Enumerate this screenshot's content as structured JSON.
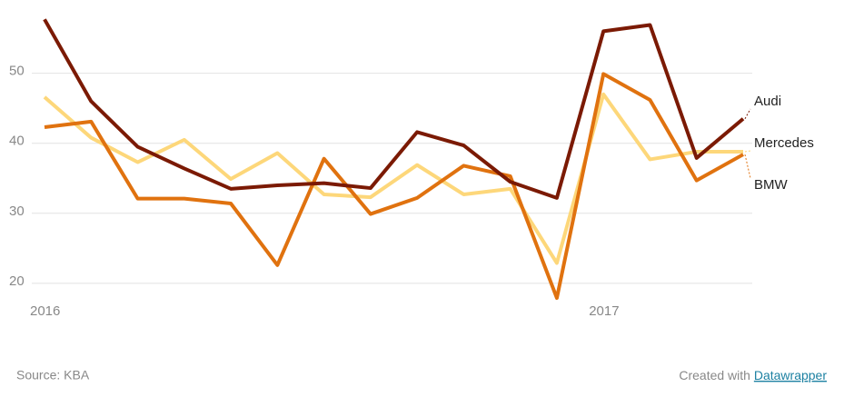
{
  "chart_data": {
    "type": "line",
    "categories": [
      "2016",
      null,
      null,
      null,
      null,
      null,
      null,
      null,
      null,
      null,
      null,
      null,
      "2017",
      null,
      null,
      null
    ],
    "series": [
      {
        "name": "Audi",
        "color": "#7b1a04",
        "values": [
          57.7,
          46.0,
          39.5,
          36.4,
          33.5,
          34.0,
          34.3,
          33.6,
          41.6,
          39.7,
          34.5,
          32.2,
          56.0,
          56.9,
          37.9,
          43.5
        ]
      },
      {
        "name": "BMW",
        "color": "#e0720f",
        "values": [
          42.3,
          43.1,
          32.1,
          32.1,
          31.4,
          22.6,
          37.8,
          29.9,
          32.2,
          36.8,
          35.3,
          17.9,
          49.9,
          46.2,
          34.7,
          38.4
        ]
      },
      {
        "name": "Mercedes",
        "color": "#fdd77a",
        "values": [
          46.6,
          40.8,
          37.3,
          40.5,
          34.9,
          38.6,
          32.7,
          32.3,
          36.9,
          32.7,
          33.5,
          22.9,
          47.0,
          37.7,
          38.8,
          38.8
        ]
      }
    ],
    "ylim": [
      17,
      58
    ],
    "yticks": [
      20,
      30,
      40,
      50
    ],
    "grid": true,
    "footer": {
      "source": "Source: KBA",
      "credit_prefix": "Created with",
      "credit_link": "Datawrapper"
    }
  }
}
